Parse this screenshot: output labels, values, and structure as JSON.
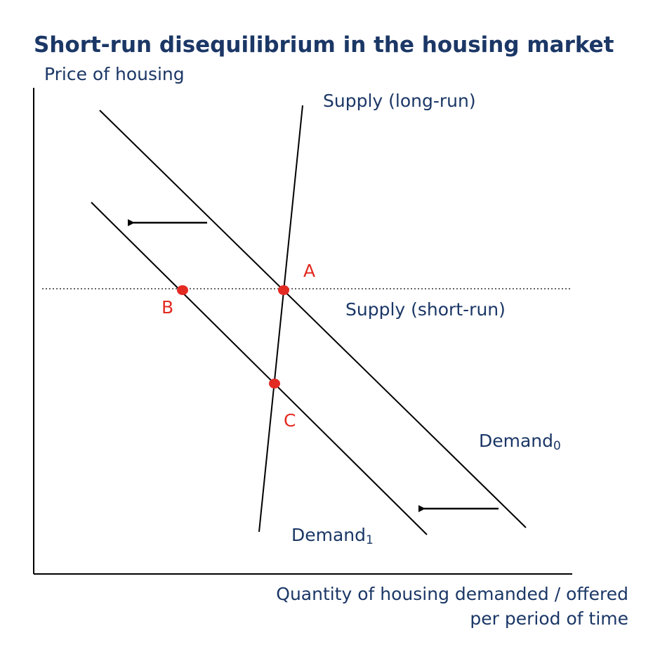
{
  "title": "Short-run disequilibrium in the housing market",
  "y_axis_label": "Price of housing",
  "x_axis_label_line1": "Quantity of housing demanded / offered",
  "x_axis_label_line2": "per period of time",
  "curves": {
    "supply_long_run": "Supply (long-run)",
    "supply_short_run": "Supply (short-run)",
    "demand0": {
      "text": "Demand",
      "subscript": "0"
    },
    "demand1": {
      "text": "Demand",
      "subscript": "1"
    }
  },
  "points": {
    "a": "A",
    "b": "B",
    "c": "C"
  },
  "colors": {
    "text": "#1b3766",
    "points": "#e32b23",
    "lines": "#000000"
  }
}
